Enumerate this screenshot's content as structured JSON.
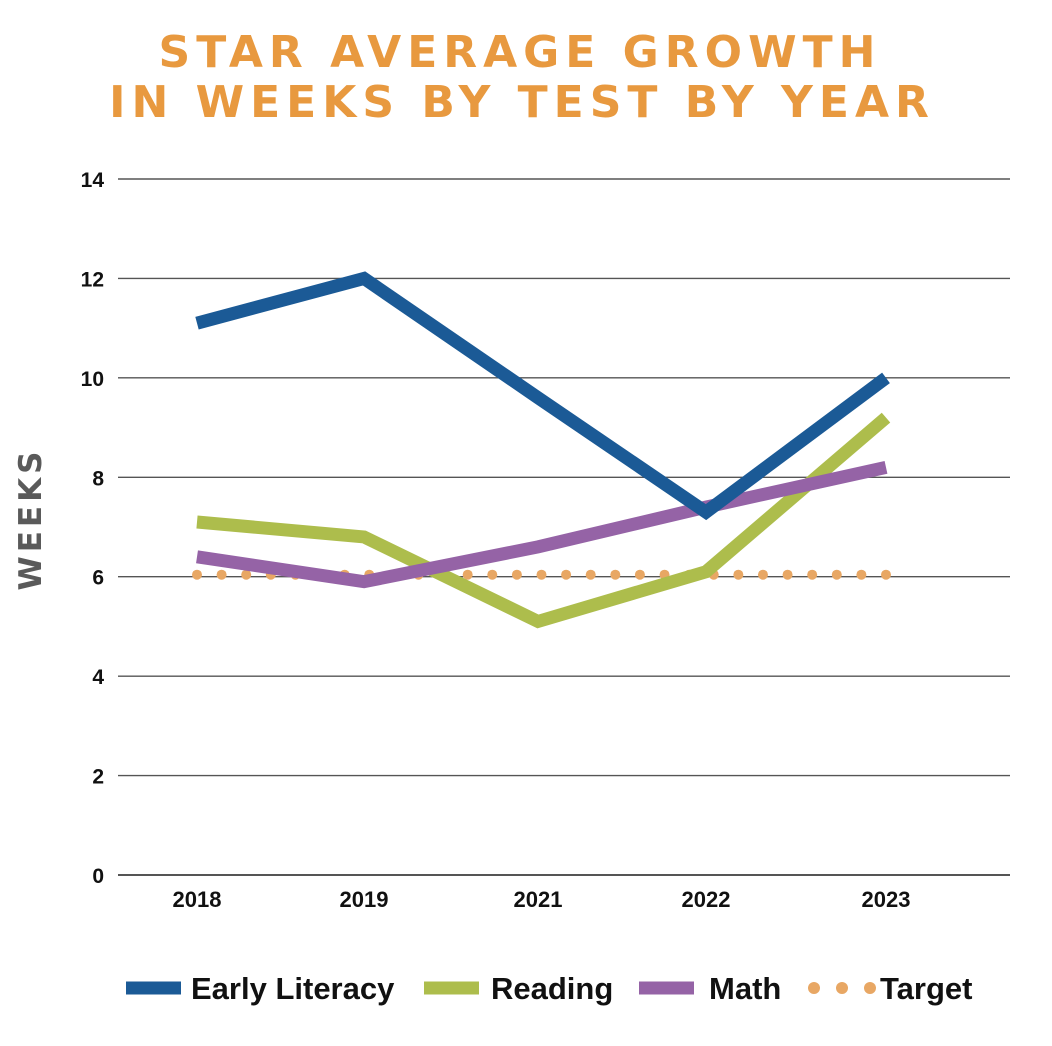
{
  "chart_data": {
    "type": "line",
    "title_lines": [
      "STAR AVERAGE GROWTH",
      "IN WEEKS BY TEST BY YEAR"
    ],
    "ylabel": "WEEKS",
    "xlabel": "",
    "categories": [
      "2018",
      "2019",
      "2021",
      "2022",
      "2023"
    ],
    "y_ticks": [
      "0",
      "2",
      "4",
      "6",
      "8",
      "10",
      "12",
      "14"
    ],
    "ylim": [
      0,
      14
    ],
    "grid": "horizontal",
    "legend_position": "bottom",
    "series": [
      {
        "name": "Early Literacy",
        "values": [
          11.1,
          12.0,
          9.6,
          7.3,
          10.0
        ],
        "color": "#1b5a96",
        "style": "solid"
      },
      {
        "name": "Reading",
        "values": [
          7.1,
          6.8,
          5.1,
          6.1,
          9.2
        ],
        "color": "#adbd4c",
        "style": "solid"
      },
      {
        "name": "Math",
        "values": [
          6.4,
          5.9,
          6.6,
          7.4,
          8.2
        ],
        "color": "#9563a6",
        "style": "solid"
      },
      {
        "name": "Target",
        "values": [
          6.0,
          6.0,
          6.0,
          6.0,
          6.0
        ],
        "color": "#e8a764",
        "style": "dotted"
      }
    ],
    "title_color": "#e8993f",
    "grid_color": "#555555"
  }
}
